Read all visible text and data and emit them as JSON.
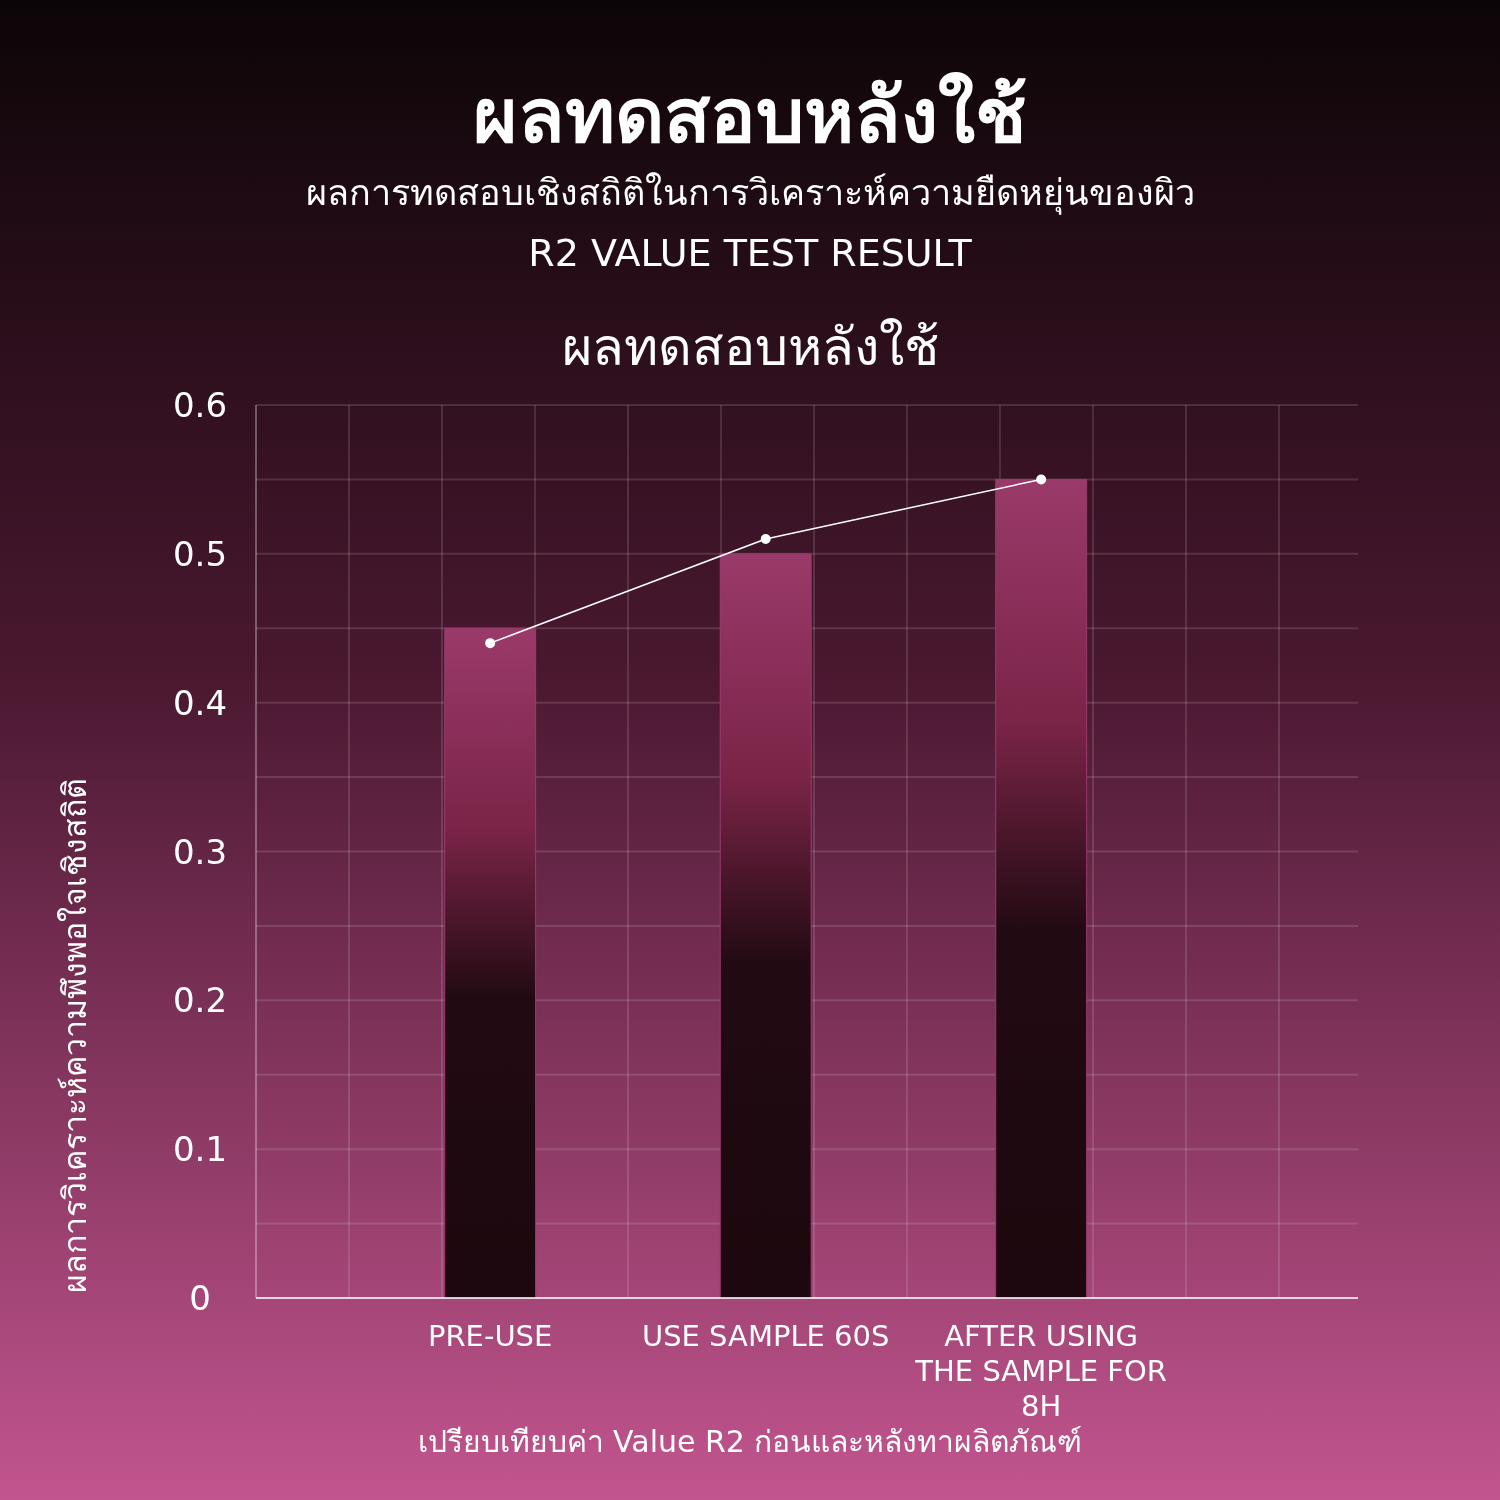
{
  "chart_data": {
    "type": "bar",
    "title": "ผลทดสอบหลังใช้",
    "subtitle": "ผลการทดสอบเชิงสถิติในการวิเคราะห์ความยืดหยุ่นของผิว",
    "ylabel": "ผลการวิเคราะห์ความพึงพอใจเชิงสถิติ",
    "annotations": [
      "R2 VALUE TEST RESULT",
      "ผลทดสอบหลังใช้",
      "เปรียบเทียบค่า Value R2 ก่อนและหลังทาผลิตภัณฑ์"
    ],
    "categories": [
      "PRE-USE",
      "USE SAMPLE 60S",
      "AFTER USING THE SAMPLE FOR 8H"
    ],
    "series": [
      {
        "color": "#9a3a6a",
        "values": [
          0.45,
          0.5,
          0.55
        ]
      },
      {
        "type": "line",
        "color": "#ffffff",
        "marker": "circle",
        "values": [
          0.44,
          0.51,
          0.55
        ]
      }
    ],
    "ylim": [
      0,
      0.6
    ],
    "yticks": [
      0,
      {
        "value": 0.05,
        "label": null
      },
      0.1,
      {
        "value": 0.15,
        "label": null
      },
      0.2,
      {
        "value": 0.25,
        "label": null
      },
      0.3,
      {
        "value": 0.35,
        "label": null
      },
      0.4,
      {
        "value": 0.45,
        "label": null
      },
      0.5,
      {
        "value": 0.55,
        "label": null
      },
      0.6
    ],
    "grid": true
  }
}
